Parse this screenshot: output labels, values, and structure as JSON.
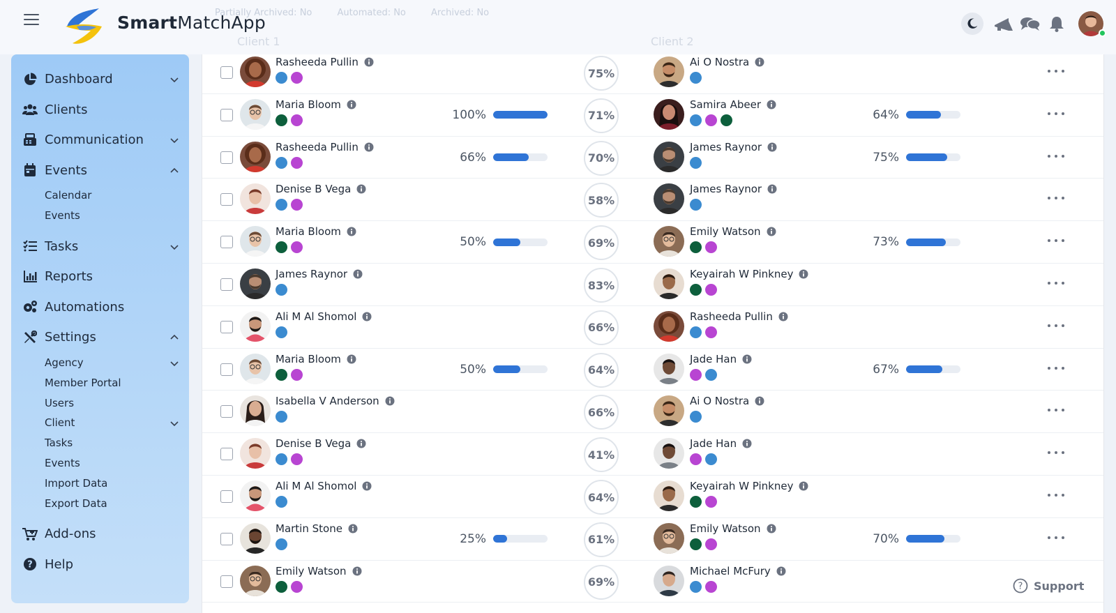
{
  "app": {
    "name_bold": "Smart",
    "name_rest": "MatchApp",
    "ghost_filters": [
      "Partially Archived: No",
      "Automated: No",
      "Archived: No"
    ],
    "ghost_columns": [
      "Client 1",
      "Client 2"
    ]
  },
  "header": {
    "icons": [
      "menu-icon",
      "moon-icon",
      "megaphone-icon",
      "chat-icon",
      "bell-icon"
    ],
    "user_status": "online"
  },
  "sidebar": {
    "items": [
      {
        "id": "dashboard",
        "label": "Dashboard",
        "icon": "chart-pie-icon",
        "chevron": "down"
      },
      {
        "id": "clients",
        "label": "Clients",
        "icon": "users-icon",
        "chevron": ""
      },
      {
        "id": "communication",
        "label": "Communication",
        "icon": "fax-icon",
        "chevron": "down"
      },
      {
        "id": "events",
        "label": "Events",
        "icon": "calendar-icon",
        "chevron": "up",
        "children": [
          {
            "label": "Calendar"
          },
          {
            "label": "Events"
          }
        ]
      },
      {
        "id": "tasks",
        "label": "Tasks",
        "icon": "list-check-icon",
        "chevron": "down"
      },
      {
        "id": "reports",
        "label": "Reports",
        "icon": "bar-chart-icon",
        "chevron": ""
      },
      {
        "id": "automations",
        "label": "Automations",
        "icon": "gears-icon",
        "chevron": ""
      },
      {
        "id": "settings",
        "label": "Settings",
        "icon": "tools-icon",
        "chevron": "up",
        "children": [
          {
            "label": "Agency",
            "chevron": "down"
          },
          {
            "label": "Member Portal"
          },
          {
            "label": "Users"
          },
          {
            "label": "Client",
            "chevron": "down"
          },
          {
            "label": "Tasks"
          },
          {
            "label": "Events"
          },
          {
            "label": "Import Data"
          },
          {
            "label": "Export Data"
          }
        ]
      },
      {
        "id": "addons",
        "label": "Add-ons",
        "icon": "cart-plus-icon",
        "chevron": ""
      },
      {
        "id": "help",
        "label": "Help",
        "icon": "question-circle-icon",
        "chevron": ""
      }
    ]
  },
  "colors": {
    "blue": "#3b8bd0",
    "purple": "#b845d2",
    "green": "#0d5f3c",
    "progress": "#2f74d6"
  },
  "matches": [
    {
      "c1": {
        "name": "Rasheeda Pullin",
        "tags": [
          "blue",
          "purple"
        ],
        "avatar": "f-curly"
      },
      "c2": {
        "name": "Ai O Nostra",
        "tags": [
          "blue"
        ],
        "avatar": "m-beard"
      },
      "match": "75%",
      "p1": null,
      "p2": null
    },
    {
      "c1": {
        "name": "Maria Bloom",
        "tags": [
          "green",
          "purple"
        ],
        "avatar": "f-glasses"
      },
      "c2": {
        "name": "Samira Abeer",
        "tags": [
          "blue",
          "purple",
          "green"
        ],
        "avatar": "f-dark"
      },
      "match": "71%",
      "p1": {
        "label": "100%",
        "value": 1.0
      },
      "p2": {
        "label": "64%",
        "value": 0.64
      }
    },
    {
      "c1": {
        "name": "Rasheeda Pullin",
        "tags": [
          "blue",
          "purple"
        ],
        "avatar": "f-curly"
      },
      "c2": {
        "name": "James Raynor",
        "tags": [
          "blue"
        ],
        "avatar": "m-gray"
      },
      "match": "70%",
      "p1": {
        "label": "66%",
        "value": 0.66
      },
      "p2": {
        "label": "75%",
        "value": 0.75
      }
    },
    {
      "c1": {
        "name": "Denise B Vega",
        "tags": [
          "blue",
          "purple"
        ],
        "avatar": "f-red"
      },
      "c2": {
        "name": "James Raynor",
        "tags": [
          "blue"
        ],
        "avatar": "m-gray"
      },
      "match": "58%",
      "p1": null,
      "p2": null
    },
    {
      "c1": {
        "name": "Maria Bloom",
        "tags": [
          "green",
          "purple"
        ],
        "avatar": "f-glasses"
      },
      "c2": {
        "name": "Emily Watson",
        "tags": [
          "green",
          "purple"
        ],
        "avatar": "f-smile"
      },
      "match": "69%",
      "p1": {
        "label": "50%",
        "value": 0.5
      },
      "p2": {
        "label": "73%",
        "value": 0.73
      }
    },
    {
      "c1": {
        "name": "James Raynor",
        "tags": [
          "blue"
        ],
        "avatar": "m-gray"
      },
      "c2": {
        "name": "Keyairah W Pinkney",
        "tags": [
          "green",
          "purple"
        ],
        "avatar": "f-dark2"
      },
      "match": "83%",
      "p1": null,
      "p2": null
    },
    {
      "c1": {
        "name": "Ali M Al Shomol",
        "tags": [
          "blue"
        ],
        "avatar": "m-scarf"
      },
      "c2": {
        "name": "Rasheeda Pullin",
        "tags": [
          "blue",
          "purple"
        ],
        "avatar": "f-curly"
      },
      "match": "66%",
      "p1": null,
      "p2": null
    },
    {
      "c1": {
        "name": "Maria Bloom",
        "tags": [
          "green",
          "purple"
        ],
        "avatar": "f-glasses"
      },
      "c2": {
        "name": "Jade Han",
        "tags": [
          "purple",
          "blue"
        ],
        "avatar": "m-young"
      },
      "match": "64%",
      "p1": {
        "label": "50%",
        "value": 0.5
      },
      "p2": {
        "label": "67%",
        "value": 0.67
      }
    },
    {
      "c1": {
        "name": "Isabella V Anderson",
        "tags": [
          "blue"
        ],
        "avatar": "f-long"
      },
      "c2": {
        "name": "Ai O Nostra",
        "tags": [
          "blue"
        ],
        "avatar": "m-beard"
      },
      "match": "66%",
      "p1": null,
      "p2": null
    },
    {
      "c1": {
        "name": "Denise B Vega",
        "tags": [
          "blue",
          "purple"
        ],
        "avatar": "f-red"
      },
      "c2": {
        "name": "Jade Han",
        "tags": [
          "purple",
          "blue"
        ],
        "avatar": "m-young"
      },
      "match": "41%",
      "p1": null,
      "p2": null
    },
    {
      "c1": {
        "name": "Ali M Al Shomol",
        "tags": [
          "blue"
        ],
        "avatar": "m-scarf"
      },
      "c2": {
        "name": "Keyairah W Pinkney",
        "tags": [
          "green",
          "purple"
        ],
        "avatar": "f-dark2"
      },
      "match": "64%",
      "p1": null,
      "p2": null
    },
    {
      "c1": {
        "name": "Martin Stone",
        "tags": [
          "blue"
        ],
        "avatar": "m-laugh"
      },
      "c2": {
        "name": "Emily Watson",
        "tags": [
          "green",
          "purple"
        ],
        "avatar": "f-smile"
      },
      "match": "61%",
      "p1": {
        "label": "25%",
        "value": 0.25
      },
      "p2": {
        "label": "70%",
        "value": 0.7
      }
    },
    {
      "c1": {
        "name": "Emily Watson",
        "tags": [
          "green",
          "purple"
        ],
        "avatar": "f-smile"
      },
      "c2": {
        "name": "Michael McFury",
        "tags": [
          "blue",
          "purple"
        ],
        "avatar": "m-plain"
      },
      "match": "69%",
      "p1": null,
      "p2": null
    }
  ],
  "support": {
    "label": "Support",
    "icon": "question-circle-icon"
  }
}
